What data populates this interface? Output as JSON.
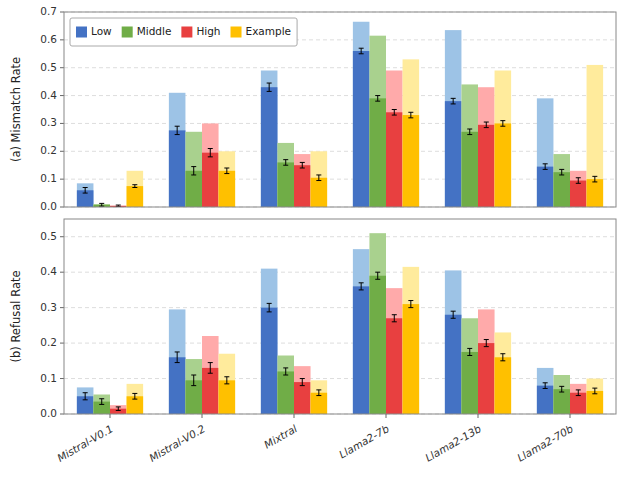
{
  "chart_data": [
    {
      "type": "bar",
      "y_label": "(a) Mismatch Rate",
      "categories": [
        "Mistral-V0.1",
        "Mistral-V0.2",
        "Mixtral",
        "Llama2-7b",
        "Llama2-13b",
        "Llama2-70b"
      ],
      "tick_labels": "y",
      "grid": true,
      "legend": "upper left",
      "ylim": [
        0.0,
        0.7
      ],
      "yticks": [
        {
          "value": 0.0,
          "label": "0.0"
        },
        0.1,
        0.2,
        0.3,
        0.4,
        0.5,
        0.6,
        0.7
      ],
      "series": [
        {
          "name": "Low",
          "color": "#4472C4",
          "values": [
            0.06,
            0.275,
            0.43,
            0.56,
            0.38,
            0.145
          ],
          "errors": [
            0.01,
            0.015,
            0.015,
            0.01,
            0.01,
            0.01
          ],
          "background": {
            "color": "#9DC3E6",
            "values": [
              0.085,
              0.41,
              0.49,
              0.665,
              0.635,
              0.39
            ]
          }
        },
        {
          "name": "Middle",
          "color": "#70AD47",
          "values": [
            0.008,
            0.13,
            0.16,
            0.39,
            0.27,
            0.125
          ],
          "errors": [
            0.005,
            0.015,
            0.01,
            0.01,
            0.01,
            0.01
          ],
          "background": {
            "color": "#A9D18E",
            "values": [
              0.01,
              0.27,
              0.23,
              0.615,
              0.44,
              0.19
            ]
          }
        },
        {
          "name": "High",
          "color": "#E84040",
          "values": [
            0.004,
            0.195,
            0.15,
            0.34,
            0.295,
            0.095
          ],
          "errors": [
            0.003,
            0.015,
            0.01,
            0.01,
            0.01,
            0.01
          ],
          "background": {
            "color": "#FFAAAA",
            "values": [
              0.005,
              0.3,
              0.19,
              0.49,
              0.43,
              0.13
            ]
          }
        },
        {
          "name": "Example",
          "color": "#FFC000",
          "values": [
            0.075,
            0.13,
            0.105,
            0.33,
            0.3,
            0.1
          ],
          "errors": [
            0.005,
            0.01,
            0.01,
            0.01,
            0.01,
            0.01
          ],
          "background": {
            "color": "#FFEB9C",
            "values": [
              0.13,
              0.2,
              0.2,
              0.53,
              0.49,
              0.51
            ]
          }
        }
      ]
    },
    {
      "type": "bar",
      "y_label": "(b) Refusal Rate",
      "categories": [
        "Mistral-V0.1",
        "Mistral-V0.2",
        "Mixtral",
        "Llama2-7b",
        "Llama2-13b",
        "Llama2-70b"
      ],
      "grid": true,
      "ylim": [
        0.0,
        0.55
      ],
      "yticks": [
        {
          "value": 0.0,
          "label": "0.0"
        },
        0.1,
        0.2,
        0.3,
        0.4,
        0.5
      ],
      "series": [
        {
          "color": "#4472C4",
          "values": [
            0.05,
            0.16,
            0.3,
            0.36,
            0.28,
            0.08
          ],
          "errors": [
            0.01,
            0.015,
            0.012,
            0.01,
            0.01,
            0.008
          ],
          "background": {
            "color": "#9DC3E6",
            "values": [
              0.075,
              0.295,
              0.41,
              0.465,
              0.405,
              0.13
            ]
          }
        },
        {
          "color": "#70AD47",
          "values": [
            0.035,
            0.095,
            0.12,
            0.39,
            0.175,
            0.07
          ],
          "errors": [
            0.008,
            0.015,
            0.01,
            0.01,
            0.01,
            0.008
          ],
          "background": {
            "color": "#A9D18E",
            "values": [
              0.055,
              0.155,
              0.165,
              0.51,
              0.27,
              0.11
            ]
          }
        },
        {
          "color": "#E84040",
          "values": [
            0.015,
            0.13,
            0.09,
            0.27,
            0.2,
            0.06
          ],
          "errors": [
            0.005,
            0.015,
            0.01,
            0.01,
            0.01,
            0.008
          ],
          "background": {
            "color": "#FFAAAA",
            "values": [
              0.025,
              0.22,
              0.135,
              0.355,
              0.295,
              0.085
            ]
          }
        },
        {
          "color": "#FFC000",
          "values": [
            0.05,
            0.095,
            0.06,
            0.31,
            0.16,
            0.065
          ],
          "errors": [
            0.008,
            0.01,
            0.008,
            0.01,
            0.01,
            0.008
          ],
          "background": {
            "color": "#FFEB9C",
            "values": [
              0.085,
              0.17,
              0.095,
              0.415,
              0.23,
              0.1
            ]
          }
        }
      ]
    }
  ]
}
